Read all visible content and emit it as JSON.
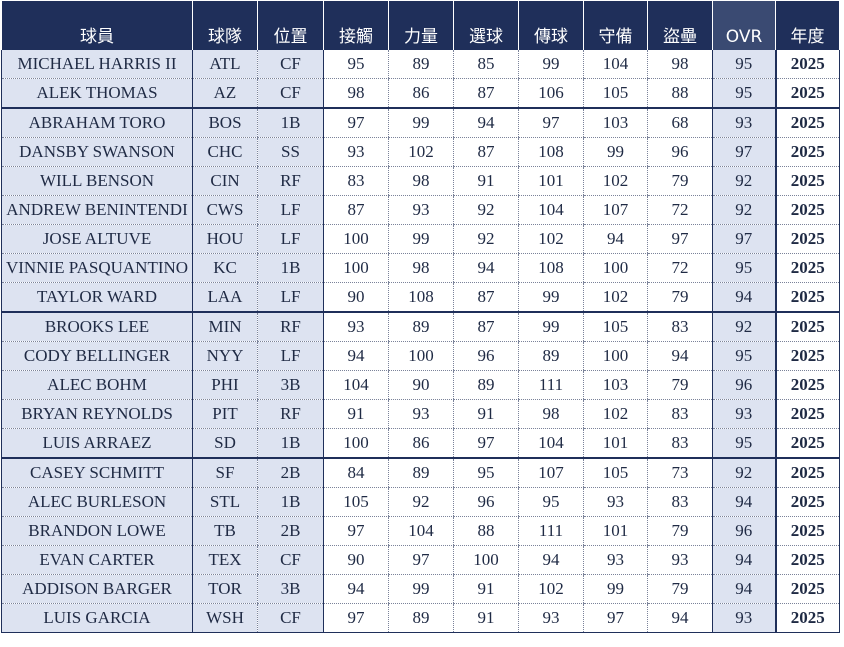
{
  "headers": [
    "球員",
    "球隊",
    "位置",
    "接觸",
    "力量",
    "選球",
    "傳球",
    "守備",
    "盜壘",
    "OVR",
    "年度"
  ],
  "rows": [
    [
      "MICHAEL HARRIS II",
      "ATL",
      "CF",
      "95",
      "89",
      "85",
      "99",
      "104",
      "98",
      "95",
      "2025"
    ],
    [
      "ALEK THOMAS",
      "AZ",
      "CF",
      "98",
      "86",
      "87",
      "106",
      "105",
      "88",
      "95",
      "2025"
    ],
    [
      "ABRAHAM TORO",
      "BOS",
      "1B",
      "97",
      "99",
      "94",
      "97",
      "103",
      "68",
      "93",
      "2025"
    ],
    [
      "DANSBY SWANSON",
      "CHC",
      "SS",
      "93",
      "102",
      "87",
      "108",
      "99",
      "96",
      "97",
      "2025"
    ],
    [
      "WILL BENSON",
      "CIN",
      "RF",
      "83",
      "98",
      "91",
      "101",
      "102",
      "79",
      "92",
      "2025"
    ],
    [
      "ANDREW BENINTENDI",
      "CWS",
      "LF",
      "87",
      "93",
      "92",
      "104",
      "107",
      "72",
      "92",
      "2025"
    ],
    [
      "JOSE ALTUVE",
      "HOU",
      "LF",
      "100",
      "99",
      "92",
      "102",
      "94",
      "97",
      "97",
      "2025"
    ],
    [
      "VINNIE PASQUANTINO",
      "KC",
      "1B",
      "100",
      "98",
      "94",
      "108",
      "100",
      "72",
      "95",
      "2025"
    ],
    [
      "TAYLOR WARD",
      "LAA",
      "LF",
      "90",
      "108",
      "87",
      "99",
      "102",
      "79",
      "94",
      "2025"
    ],
    [
      "BROOKS LEE",
      "MIN",
      "RF",
      "93",
      "89",
      "87",
      "99",
      "105",
      "83",
      "92",
      "2025"
    ],
    [
      "CODY BELLINGER",
      "NYY",
      "LF",
      "94",
      "100",
      "96",
      "89",
      "100",
      "94",
      "95",
      "2025"
    ],
    [
      "ALEC BOHM",
      "PHI",
      "3B",
      "104",
      "90",
      "89",
      "111",
      "103",
      "79",
      "96",
      "2025"
    ],
    [
      "BRYAN REYNOLDS",
      "PIT",
      "RF",
      "91",
      "93",
      "91",
      "98",
      "102",
      "83",
      "93",
      "2025"
    ],
    [
      "LUIS ARRAEZ",
      "SD",
      "1B",
      "100",
      "86",
      "97",
      "104",
      "101",
      "83",
      "95",
      "2025"
    ],
    [
      "CASEY SCHMITT",
      "SF",
      "2B",
      "84",
      "89",
      "95",
      "107",
      "105",
      "73",
      "92",
      "2025"
    ],
    [
      "ALEC BURLESON",
      "STL",
      "1B",
      "105",
      "92",
      "96",
      "95",
      "93",
      "83",
      "94",
      "2025"
    ],
    [
      "BRANDON LOWE",
      "TB",
      "2B",
      "97",
      "104",
      "88",
      "111",
      "101",
      "79",
      "96",
      "2025"
    ],
    [
      "EVAN CARTER",
      "TEX",
      "CF",
      "90",
      "97",
      "100",
      "94",
      "93",
      "93",
      "94",
      "2025"
    ],
    [
      "ADDISON BARGER",
      "TOR",
      "3B",
      "94",
      "99",
      "91",
      "102",
      "99",
      "79",
      "94",
      "2025"
    ],
    [
      "LUIS GARCIA",
      "WSH",
      "CF",
      "97",
      "89",
      "91",
      "93",
      "97",
      "94",
      "93",
      "2025"
    ]
  ],
  "colors": {
    "header_bg": "#1f2f5a",
    "header_ovr_bg": "#3a4a72",
    "shaded_cell": "#dde3f1",
    "text": "#1f2a44"
  }
}
